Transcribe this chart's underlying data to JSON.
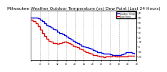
{
  "title": "Milwaukee Weather Outdoor Temperature (vs) Dew Point (Last 24 Hours)",
  "title_fontsize": 4.2,
  "background_color": "#ffffff",
  "grid_color": "#aaaaaa",
  "temp_color": "#0000dd",
  "dew_color": "#dd0000",
  "temp_label": "Outdoor Temp",
  "dew_label": "Dew Point",
  "ylabel_right": [
    "70",
    "60",
    "50",
    "40",
    "30",
    "20",
    "10",
    "0",
    "-10",
    "-20"
  ],
  "ytick_vals": [
    70,
    60,
    50,
    40,
    30,
    20,
    10,
    0,
    -10,
    -20
  ],
  "ylim": [
    -28,
    75
  ],
  "xlim": [
    0,
    48
  ],
  "temp_data": [
    [
      0,
      60
    ],
    [
      1,
      60
    ],
    [
      2,
      60
    ],
    [
      3,
      58
    ],
    [
      4,
      55
    ],
    [
      5,
      52
    ],
    [
      6,
      48
    ],
    [
      7,
      44
    ],
    [
      8,
      42
    ],
    [
      9,
      40
    ],
    [
      10,
      37
    ],
    [
      11,
      35
    ],
    [
      12,
      31
    ],
    [
      13,
      28
    ],
    [
      14,
      26
    ],
    [
      15,
      24
    ],
    [
      16,
      20
    ],
    [
      17,
      17
    ],
    [
      18,
      14
    ],
    [
      19,
      12
    ],
    [
      20,
      9
    ],
    [
      21,
      7
    ],
    [
      22,
      4
    ],
    [
      23,
      2
    ],
    [
      24,
      0
    ],
    [
      25,
      -1
    ],
    [
      26,
      -3
    ],
    [
      27,
      -5
    ],
    [
      28,
      -7
    ],
    [
      29,
      -9
    ],
    [
      30,
      -11
    ],
    [
      31,
      -12
    ],
    [
      32,
      -13
    ],
    [
      33,
      -14
    ],
    [
      34,
      -14
    ],
    [
      35,
      -15
    ],
    [
      36,
      -16
    ],
    [
      37,
      -17
    ],
    [
      38,
      -17
    ],
    [
      39,
      -18
    ],
    [
      40,
      -18
    ],
    [
      41,
      -16
    ],
    [
      42,
      -14
    ],
    [
      43,
      -12
    ],
    [
      44,
      -11
    ],
    [
      45,
      -11
    ],
    [
      46,
      -13
    ],
    [
      47,
      -14
    ]
  ],
  "dew_data": [
    [
      0,
      55
    ],
    [
      1,
      53
    ],
    [
      2,
      48
    ],
    [
      3,
      42
    ],
    [
      4,
      35
    ],
    [
      5,
      28
    ],
    [
      6,
      22
    ],
    [
      7,
      16
    ],
    [
      8,
      12
    ],
    [
      9,
      10
    ],
    [
      10,
      8
    ],
    [
      11,
      7
    ],
    [
      12,
      6
    ],
    [
      13,
      7
    ],
    [
      14,
      9
    ],
    [
      15,
      10
    ],
    [
      16,
      9
    ],
    [
      17,
      7
    ],
    [
      18,
      5
    ],
    [
      19,
      2
    ],
    [
      20,
      0
    ],
    [
      21,
      -2
    ],
    [
      22,
      -4
    ],
    [
      23,
      -6
    ],
    [
      24,
      -9
    ],
    [
      25,
      -11
    ],
    [
      26,
      -13
    ],
    [
      27,
      -15
    ],
    [
      28,
      -17
    ],
    [
      29,
      -18
    ],
    [
      30,
      -19
    ],
    [
      31,
      -20
    ],
    [
      32,
      -21
    ],
    [
      33,
      -22
    ],
    [
      34,
      -21
    ],
    [
      35,
      -20
    ],
    [
      36,
      -20
    ],
    [
      37,
      -19
    ],
    [
      38,
      -20
    ],
    [
      39,
      -20
    ],
    [
      40,
      -21
    ],
    [
      41,
      -21
    ],
    [
      42,
      -21
    ],
    [
      43,
      -20
    ],
    [
      44,
      -19
    ],
    [
      45,
      -19
    ],
    [
      46,
      -19
    ],
    [
      47,
      -19
    ]
  ],
  "xtick_positions": [
    0,
    4,
    8,
    12,
    16,
    20,
    24,
    28,
    32,
    36,
    40,
    44,
    48
  ],
  "xtick_labels": [
    "",
    "4",
    "8",
    "12",
    "16",
    "20",
    "24",
    "28",
    "32",
    "36",
    "40",
    "44",
    "48"
  ],
  "vgrid_positions": [
    4,
    8,
    12,
    16,
    20,
    24,
    28,
    32,
    36,
    40,
    44,
    48
  ]
}
